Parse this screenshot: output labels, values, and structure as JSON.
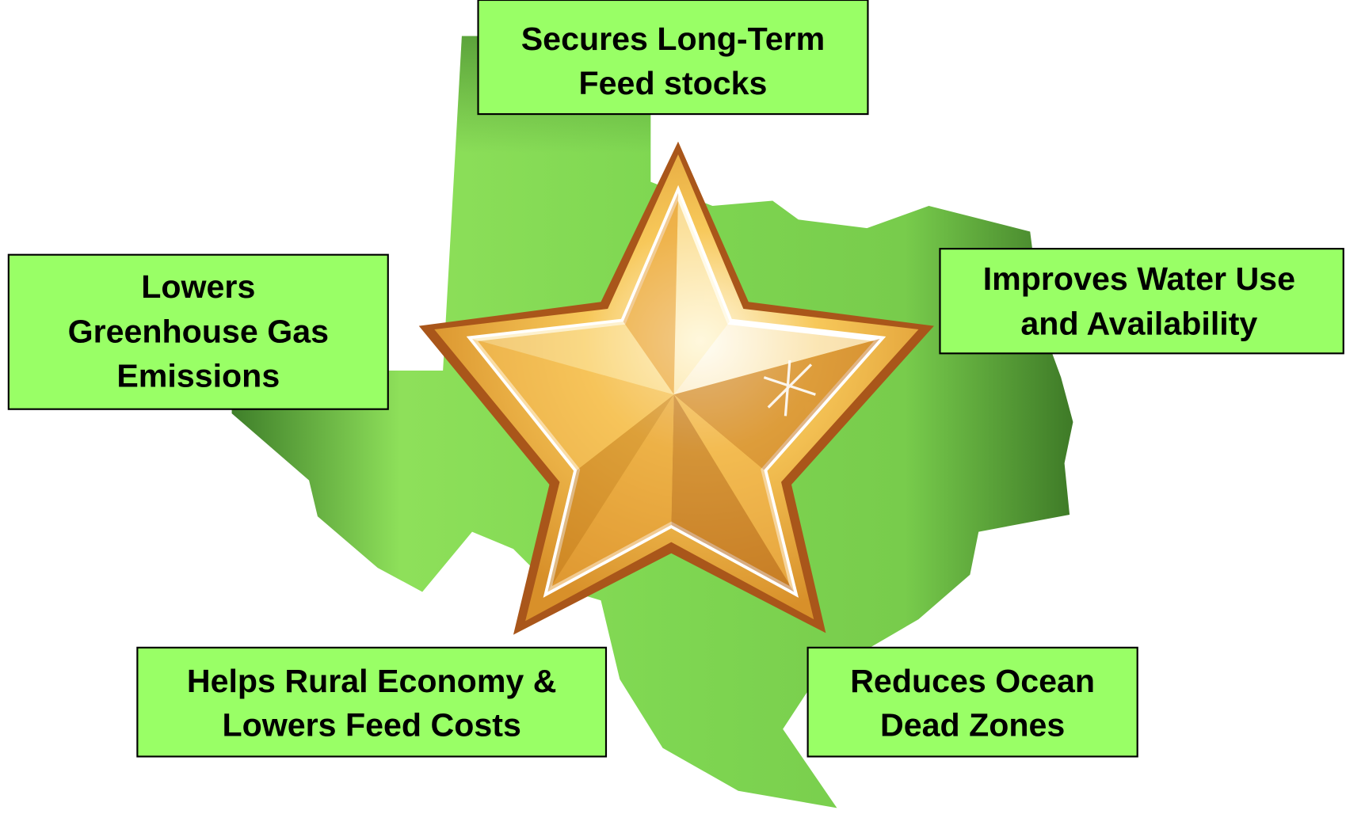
{
  "boxes": [
    {
      "lines": [
        "Secures Long-Term",
        "Feed stocks"
      ]
    },
    {
      "lines": [
        "Lowers",
        "Greenhouse Gas",
        "Emissions"
      ]
    },
    {
      "lines": [
        "Improves Water Use",
        "and Availability"
      ]
    },
    {
      "lines": [
        "Helps Rural Economy &",
        "Lowers Feed Costs"
      ]
    },
    {
      "lines": [
        "Reduces Ocean",
        "Dead Zones"
      ]
    }
  ]
}
